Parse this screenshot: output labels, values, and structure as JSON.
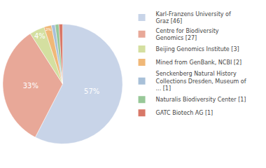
{
  "chart_data": {
    "type": "pie",
    "categories": [
      "Karl-Franzens University of\nGraz [46]",
      "Centre for Biodiversity\nGenomics [27]",
      "Beijing Genomics Institute [3]",
      "Mined from GenBank, NCBI [2]",
      "Senckenberg Natural History\nCollections Dresden, Museum of\n... [1]",
      "Naturalis Biodiversity Center [1]",
      "GATC Biotech AG [1]"
    ],
    "values": [
      57,
      33,
      4,
      2,
      1,
      1,
      1
    ],
    "value_labels": [
      "57%",
      "33%",
      "4%",
      "2%",
      null,
      null,
      null
    ],
    "colors": [
      "#c8d4e8",
      "#e8a898",
      "#d4dfa0",
      "#f0b878",
      "#a8c0d8",
      "#98c898",
      "#d87868"
    ],
    "data_labels": true,
    "legend": "right"
  }
}
